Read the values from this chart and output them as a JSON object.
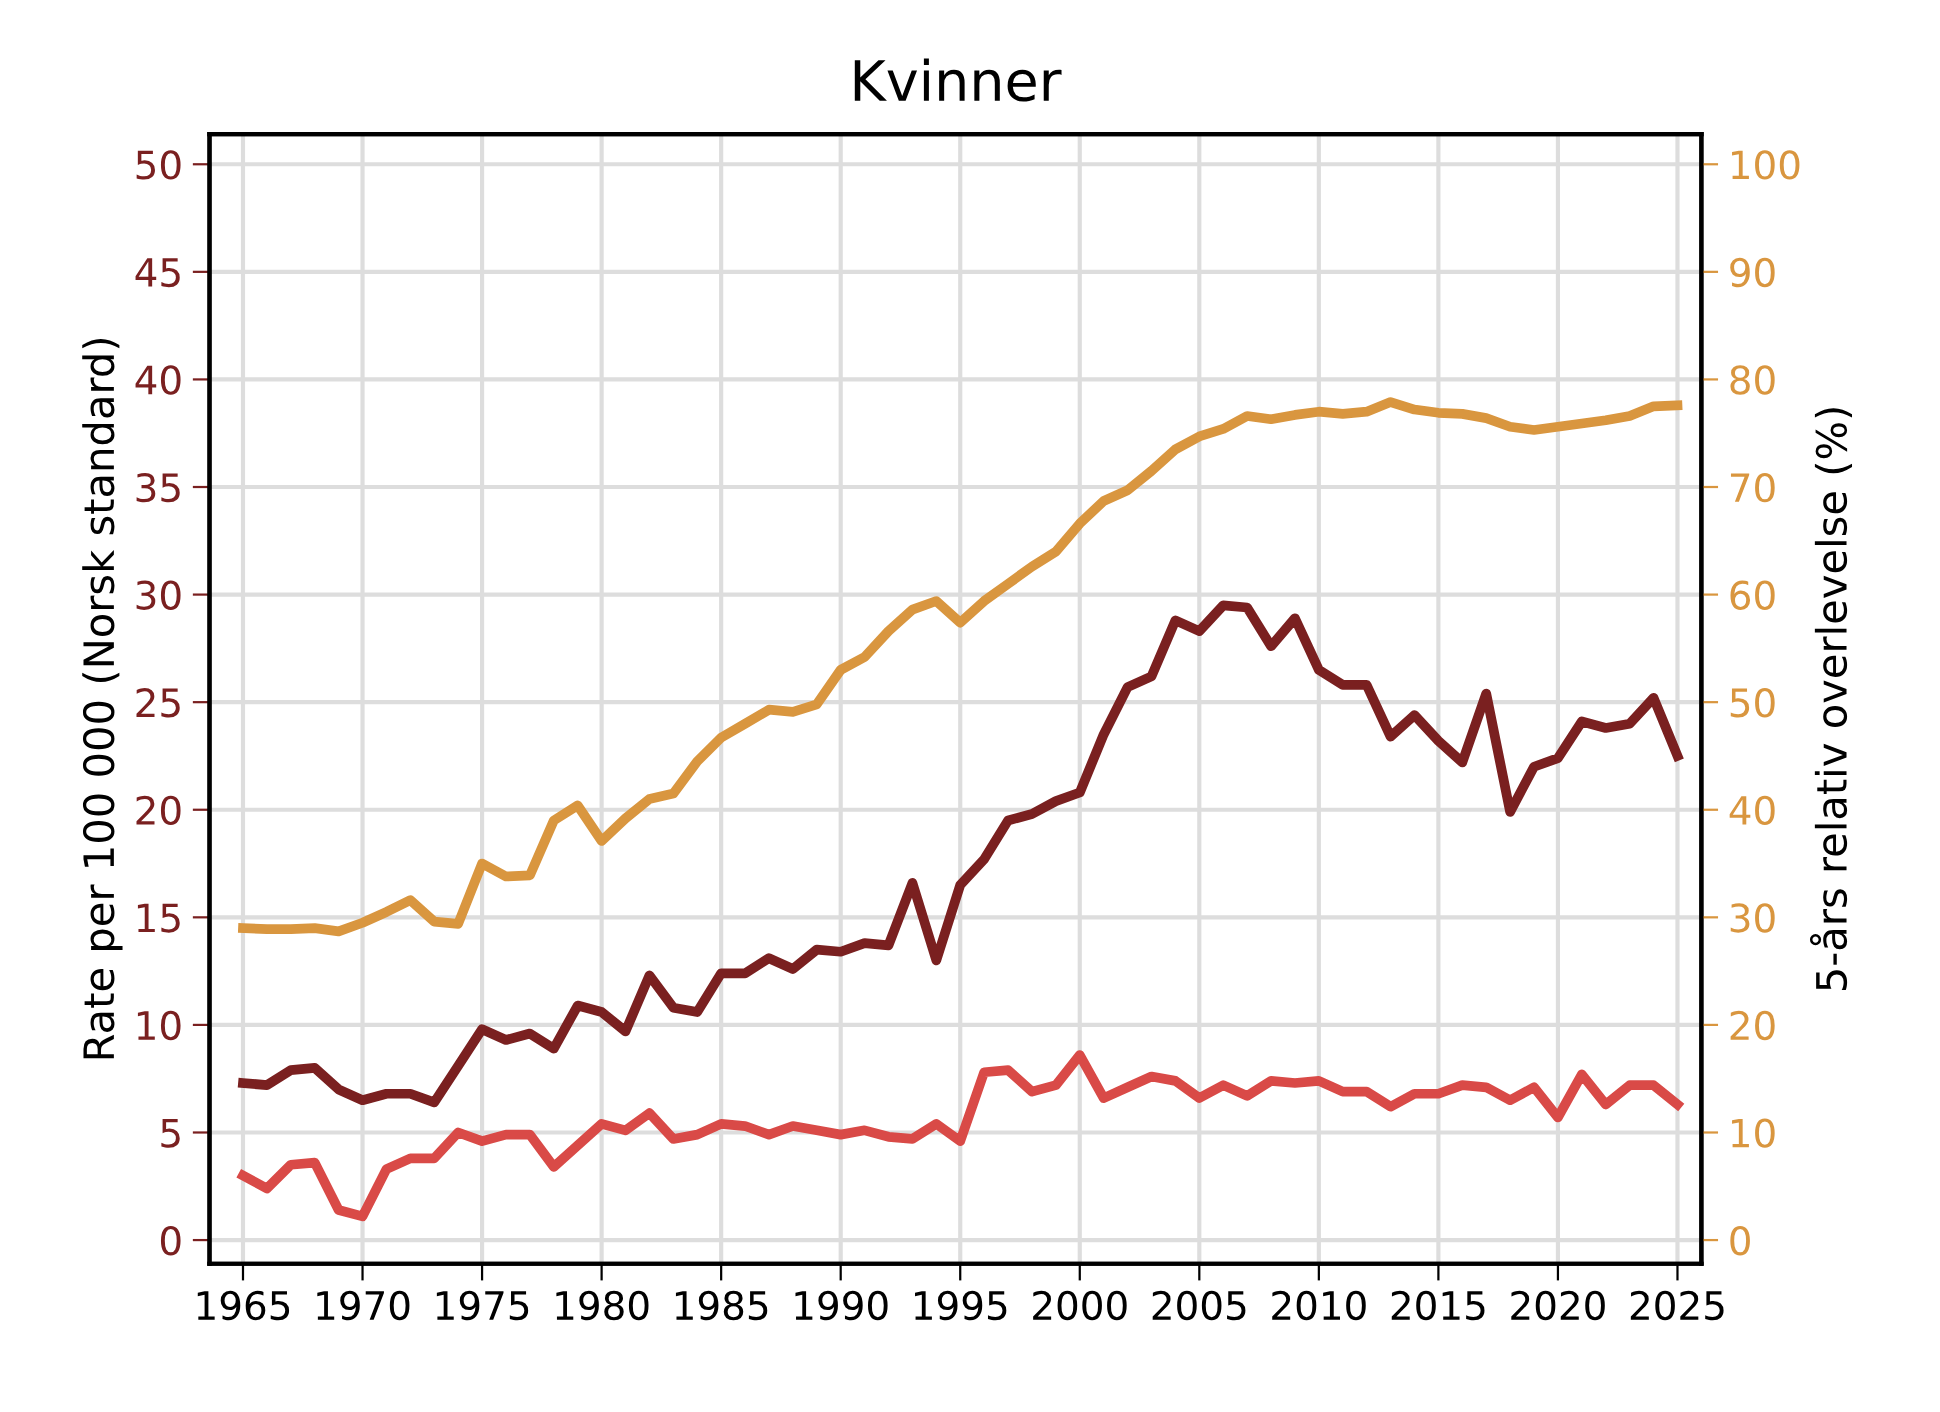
{
  "chart_data": {
    "type": "line",
    "title": "Kvinner",
    "ylabel": "Rate per 100 000 (Norsk standard)",
    "y2label": "5-års relativ overlevelse (%)",
    "x": [
      1965,
      1966,
      1967,
      1968,
      1969,
      1970,
      1971,
      1972,
      1973,
      1974,
      1975,
      1976,
      1977,
      1978,
      1979,
      1980,
      1981,
      1982,
      1983,
      1984,
      1985,
      1986,
      1987,
      1988,
      1989,
      1990,
      1991,
      1992,
      1993,
      1994,
      1995,
      1996,
      1997,
      1998,
      1999,
      2000,
      2001,
      2002,
      2003,
      2004,
      2005,
      2006,
      2007,
      2008,
      2009,
      2010,
      2011,
      2012,
      2013,
      2014,
      2015,
      2016,
      2017,
      2018,
      2019,
      2020,
      2021,
      2022,
      2023,
      2024,
      2025
    ],
    "series": [
      {
        "color": "#d9963f",
        "axis": "y2",
        "values": [
          29.0,
          28.9,
          28.9,
          29.0,
          28.7,
          29.5,
          30.5,
          31.6,
          29.6,
          29.4,
          35.0,
          33.8,
          33.9,
          39.0,
          40.4,
          37.1,
          39.2,
          41.0,
          41.5,
          44.5,
          46.7,
          48.0,
          49.3,
          49.1,
          49.8,
          53.0,
          54.2,
          56.6,
          58.6,
          59.4,
          57.4,
          59.4,
          61.0,
          62.6,
          64.0,
          66.6,
          68.7,
          69.7,
          71.5,
          73.5,
          74.7,
          75.4,
          76.6,
          76.3,
          76.7,
          77.0,
          76.8,
          77.0,
          77.9,
          77.2,
          76.9,
          76.8,
          76.4,
          75.6,
          75.3,
          75.6,
          75.9,
          76.2,
          76.6,
          77.5,
          77.6
        ]
      },
      {
        "color": "#7a2020",
        "values": [
          7.3,
          7.2,
          7.9,
          8.0,
          7.0,
          6.5,
          6.8,
          6.8,
          6.4,
          8.1,
          9.8,
          9.3,
          9.6,
          8.9,
          10.9,
          10.6,
          9.7,
          12.3,
          10.8,
          10.6,
          12.4,
          12.4,
          13.1,
          12.6,
          13.5,
          13.4,
          13.8,
          13.7,
          16.6,
          13.0,
          16.5,
          17.7,
          19.5,
          19.8,
          20.4,
          20.8,
          23.5,
          25.7,
          26.2,
          28.8,
          28.3,
          29.5,
          29.4,
          27.6,
          28.9,
          26.5,
          25.8,
          25.8,
          23.4,
          24.4,
          23.2,
          22.2,
          25.4,
          19.9,
          22.0,
          22.4,
          24.1,
          23.8,
          24.0,
          25.2,
          22.5
        ]
      },
      {
        "color": "#d94a47",
        "values": [
          3.0,
          2.4,
          3.5,
          3.6,
          1.4,
          1.1,
          3.3,
          3.8,
          3.8,
          5.0,
          4.6,
          4.9,
          4.9,
          3.4,
          4.4,
          5.4,
          5.1,
          5.9,
          4.7,
          4.9,
          5.4,
          5.3,
          4.9,
          5.3,
          5.1,
          4.9,
          5.1,
          4.8,
          4.7,
          5.4,
          4.6,
          7.8,
          7.9,
          6.9,
          7.2,
          8.6,
          6.6,
          7.1,
          7.6,
          7.4,
          6.6,
          7.2,
          6.7,
          7.4,
          7.3,
          7.4,
          6.9,
          6.9,
          6.2,
          6.8,
          6.8,
          7.2,
          7.1,
          6.5,
          7.1,
          5.7,
          7.7,
          6.3,
          7.2,
          7.2,
          6.3
        ]
      }
    ],
    "xlim": [
      1963.6,
      2026
    ],
    "xticks": [
      1965,
      1970,
      1975,
      1980,
      1985,
      1990,
      1995,
      2000,
      2005,
      2010,
      2015,
      2020,
      2025
    ],
    "ylim": [
      -1.1,
      51.4
    ],
    "yticks": [
      0,
      5,
      10,
      15,
      20,
      25,
      30,
      35,
      40,
      45,
      50
    ],
    "y2lim": [
      -2.2,
      102.8
    ],
    "y2ticks": [
      0,
      10,
      20,
      30,
      40,
      50,
      60,
      70,
      80,
      90,
      100
    ],
    "grid": true,
    "marker": "none",
    "line_style": "solid"
  }
}
